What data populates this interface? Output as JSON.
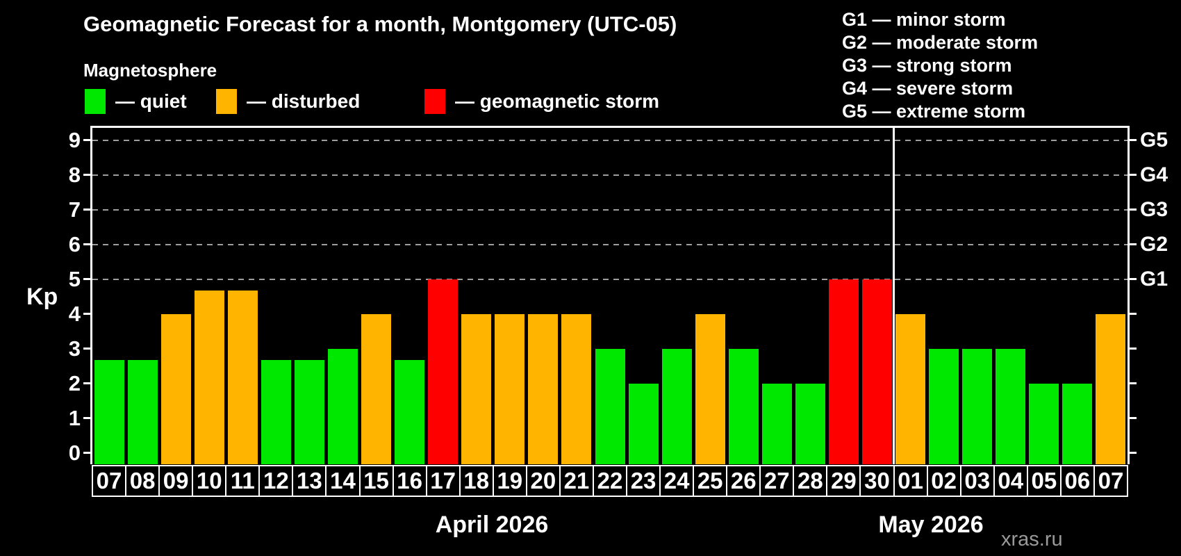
{
  "title": "Geomagnetic Forecast for a month, Montgomery (UTC-05)",
  "subtitle": "Magnetosphere",
  "legend": {
    "items": [
      {
        "key": "quiet",
        "label": "— quiet"
      },
      {
        "key": "disturbed",
        "label": "— disturbed"
      },
      {
        "key": "storm",
        "label": "— geomagnetic storm"
      }
    ]
  },
  "g_legend": [
    "G1 — minor storm",
    "G2 — moderate storm",
    "G3 — strong storm",
    "G4 — severe storm",
    "G5 — extreme storm"
  ],
  "watermark": "xras.ru",
  "colors": {
    "quiet": "#00e800",
    "disturbed": "#ffb400",
    "storm": "#ff0000",
    "grid": "#9e9e9e",
    "axis": "#ffffff",
    "watermark": "#9a9a9a"
  },
  "chart_data": {
    "type": "bar",
    "title": "Geomagnetic Forecast for a month, Montgomery (UTC-05)",
    "ylabel": "Kp",
    "ylim": [
      0,
      9
    ],
    "y_ticks": [
      0,
      1,
      2,
      3,
      4,
      5,
      6,
      7,
      8,
      9
    ],
    "gridlines_at": [
      5,
      6,
      7,
      8,
      9
    ],
    "grid": "dashed horizontal gridlines at Kp 5-9 only",
    "legend_position": "top-left",
    "right_axis": [
      {
        "kp": 5,
        "label": "G1"
      },
      {
        "kp": 6,
        "label": "G2"
      },
      {
        "kp": 7,
        "label": "G3"
      },
      {
        "kp": 8,
        "label": "G4"
      },
      {
        "kp": 9,
        "label": "G5"
      }
    ],
    "months": [
      {
        "label": "April 2026",
        "days": 24
      },
      {
        "label": "May 2026",
        "days": 7
      }
    ],
    "bars": [
      {
        "day": "07",
        "value": 2.67,
        "status": "quiet"
      },
      {
        "day": "08",
        "value": 2.67,
        "status": "quiet"
      },
      {
        "day": "09",
        "value": 4,
        "status": "disturbed"
      },
      {
        "day": "10",
        "value": 4.67,
        "status": "disturbed"
      },
      {
        "day": "11",
        "value": 4.67,
        "status": "disturbed"
      },
      {
        "day": "12",
        "value": 2.67,
        "status": "quiet"
      },
      {
        "day": "13",
        "value": 2.67,
        "status": "quiet"
      },
      {
        "day": "14",
        "value": 3,
        "status": "quiet"
      },
      {
        "day": "15",
        "value": 4,
        "status": "disturbed"
      },
      {
        "day": "16",
        "value": 2.67,
        "status": "quiet"
      },
      {
        "day": "17",
        "value": 5,
        "status": "storm"
      },
      {
        "day": "18",
        "value": 4,
        "status": "disturbed"
      },
      {
        "day": "19",
        "value": 4,
        "status": "disturbed"
      },
      {
        "day": "20",
        "value": 4,
        "status": "disturbed"
      },
      {
        "day": "21",
        "value": 4,
        "status": "disturbed"
      },
      {
        "day": "22",
        "value": 3,
        "status": "quiet"
      },
      {
        "day": "23",
        "value": 2,
        "status": "quiet"
      },
      {
        "day": "24",
        "value": 3,
        "status": "quiet"
      },
      {
        "day": "25",
        "value": 4,
        "status": "disturbed"
      },
      {
        "day": "26",
        "value": 3,
        "status": "quiet"
      },
      {
        "day": "27",
        "value": 2,
        "status": "quiet"
      },
      {
        "day": "28",
        "value": 2,
        "status": "quiet"
      },
      {
        "day": "29",
        "value": 5,
        "status": "storm"
      },
      {
        "day": "30",
        "value": 5,
        "status": "storm"
      },
      {
        "day": "01",
        "value": 4,
        "status": "disturbed"
      },
      {
        "day": "02",
        "value": 3,
        "status": "quiet"
      },
      {
        "day": "03",
        "value": 3,
        "status": "quiet"
      },
      {
        "day": "04",
        "value": 3,
        "status": "quiet"
      },
      {
        "day": "05",
        "value": 2,
        "status": "quiet"
      },
      {
        "day": "06",
        "value": 2,
        "status": "quiet"
      },
      {
        "day": "07",
        "value": 4,
        "status": "disturbed"
      }
    ]
  }
}
